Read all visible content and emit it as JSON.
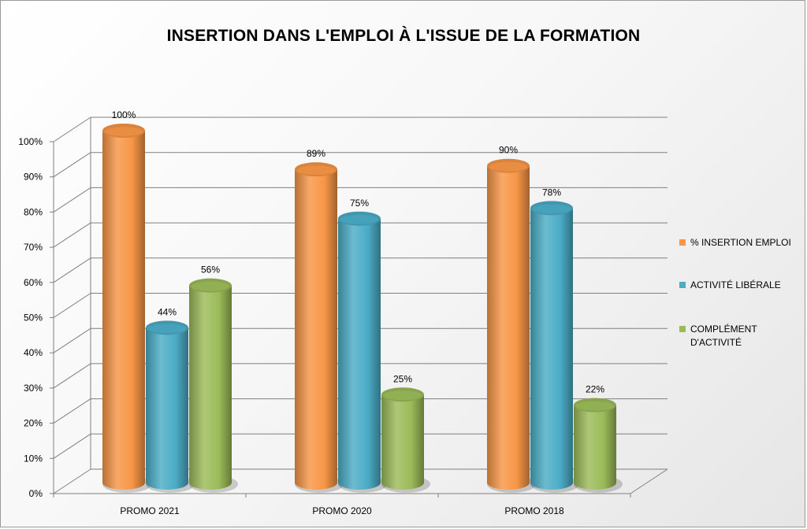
{
  "chart_data": {
    "type": "bar",
    "title": "INSERTION DANS L'EMPLOI À L'ISSUE DE LA FORMATION",
    "categories": [
      "PROMO 2021",
      "PROMO 2020",
      "PROMO 2018"
    ],
    "series": [
      {
        "name": "% INSERTION EMPLOI",
        "values": [
          100,
          89,
          90
        ],
        "labels": [
          "100%",
          "89%",
          "90%"
        ],
        "color": "#f79646"
      },
      {
        "name": "ACTIVITÉ LIBÉRALE",
        "values": [
          44,
          75,
          78
        ],
        "labels": [
          "44%",
          "75%",
          "78%"
        ],
        "color": "#4bacc6"
      },
      {
        "name": "COMPLÉMENT\nD'ACTIVITÉ",
        "values": [
          56,
          25,
          22
        ],
        "labels": [
          "56%",
          "25%",
          "22%"
        ],
        "color": "#9bbb59"
      }
    ],
    "yticks": [
      "0%",
      "10%",
      "20%",
      "30%",
      "40%",
      "50%",
      "60%",
      "70%",
      "80%",
      "90%",
      "100%"
    ],
    "ylim": [
      0,
      100
    ],
    "grid": true,
    "legend": "right",
    "style": "3d-cylinder"
  }
}
